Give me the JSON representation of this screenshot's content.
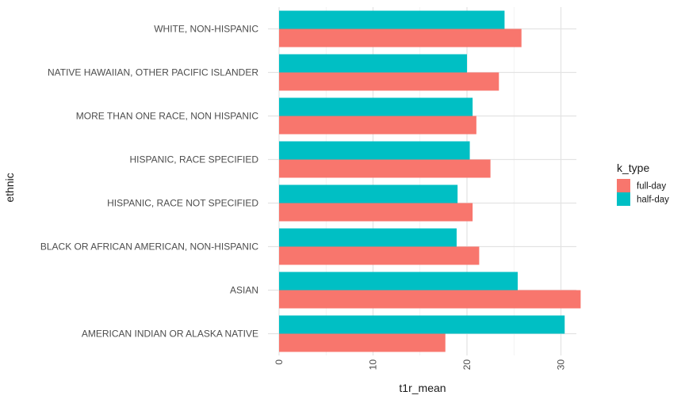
{
  "chart_data": {
    "type": "bar",
    "orientation": "horizontal",
    "categories": [
      "AMERICAN INDIAN OR ALASKA NATIVE",
      "ASIAN",
      "BLACK OR AFRICAN AMERICAN, NON-HISPANIC",
      "HISPANIC, RACE NOT SPECIFIED",
      "HISPANIC, RACE SPECIFIED",
      "MORE THAN ONE RACE, NON HISPANIC",
      "NATIVE HAWAIIAN, OTHER PACIFIC ISLANDER",
      "WHITE, NON-HISPANIC"
    ],
    "series": [
      {
        "name": "full-day",
        "color": "#F8766D",
        "values": [
          17.7,
          32.1,
          21.3,
          20.6,
          22.5,
          21.0,
          23.4,
          25.8
        ]
      },
      {
        "name": "half-day",
        "color": "#00BFC4",
        "values": [
          30.4,
          25.4,
          18.9,
          19.0,
          20.3,
          20.6,
          20.0,
          24.0
        ]
      }
    ],
    "xlabel": "t1r_mean",
    "ylabel": "ethnic",
    "xlim": [
      0,
      33
    ],
    "xticks": [
      0,
      10,
      20,
      30
    ],
    "tick_label_rotation": "vertical",
    "grid": true,
    "legend": {
      "title": "k_type",
      "placement": "right"
    }
  }
}
